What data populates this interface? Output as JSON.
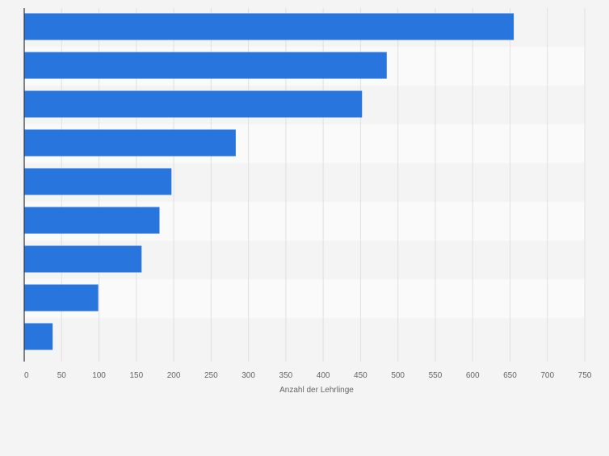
{
  "chart_data": {
    "type": "bar",
    "orientation": "horizontal",
    "categories": [
      "",
      "",
      "",
      "",
      "",
      "",
      "",
      "",
      ""
    ],
    "values": [
      655,
      485,
      452,
      283,
      197,
      181,
      157,
      99,
      38
    ],
    "xlabel": "Anzahl der Lehrlinge",
    "xlim": [
      0,
      750
    ],
    "xticks": [
      0,
      50,
      100,
      150,
      200,
      250,
      300,
      350,
      400,
      450,
      500,
      550,
      600,
      650,
      700,
      750
    ],
    "xtick_labels": [
      "0",
      "50",
      "100",
      "150",
      "200",
      "250",
      "300",
      "350",
      "400",
      "450",
      "500",
      "550",
      "600",
      "650",
      "700",
      "750"
    ],
    "grid": true,
    "legend": "none"
  },
  "colors": {
    "bar": "#2876dd",
    "band_light": "#f4f4f4",
    "band_lighter": "#fafafa",
    "grid": "#e0e0e0",
    "axis": "#333333",
    "text": "#666666"
  }
}
